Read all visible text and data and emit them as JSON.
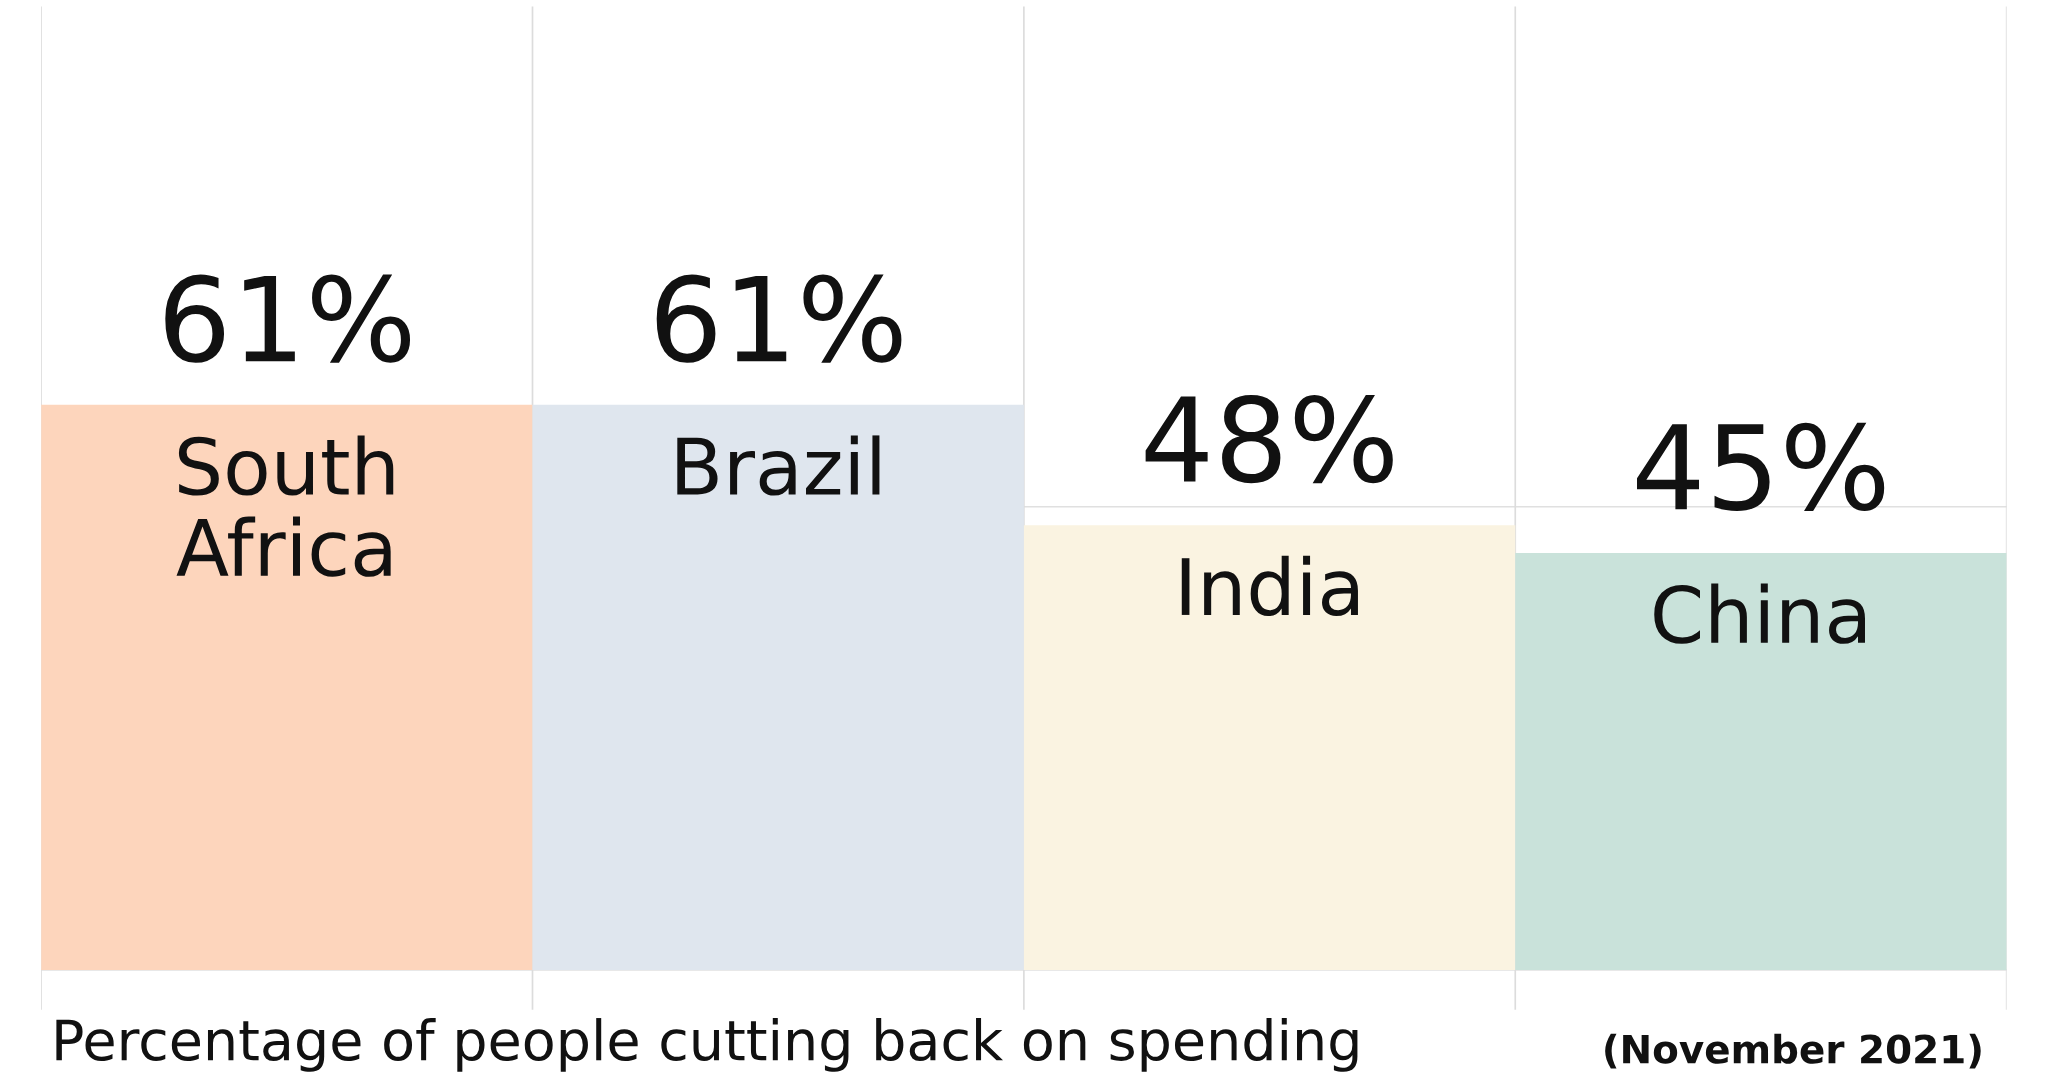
{
  "chart_data": {
    "type": "bar",
    "categories": [
      "South Africa",
      "Brazil",
      "India",
      "China"
    ],
    "values": [
      61,
      61,
      48,
      45
    ],
    "colors": [
      "#fdd5bc",
      "#dfe6ee",
      "#faf3e1",
      "#c9e2da"
    ],
    "value_labels": [
      "61%",
      "61%",
      "48%",
      "45%"
    ],
    "xlabel": "Percentage of people cutting back on spending",
    "annotations": [
      "(November 2021)"
    ],
    "ylim": [
      -4.3,
      104
    ],
    "yticks": [
      {
        "value": 0,
        "label": null
      },
      {
        "value": 50,
        "label": null
      }
    ],
    "tick_labels": false,
    "grid": true
  }
}
